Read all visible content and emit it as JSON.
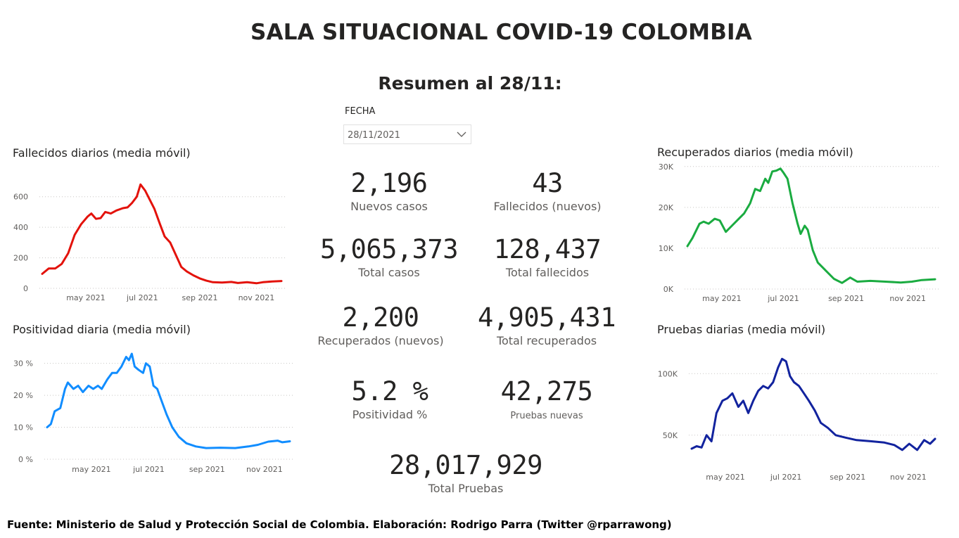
{
  "header": {
    "title": "SALA SITUACIONAL COVID-19 COLOMBIA",
    "subtitle": "Resumen al 28/11:"
  },
  "filter": {
    "label": "FECHA",
    "value": "28/11/2021",
    "icon": "chevron-down-icon"
  },
  "kpis": {
    "nuevos_casos": {
      "value": "2,196",
      "label": "Nuevos casos"
    },
    "fallecidos_nuevos": {
      "value": "43",
      "label": "Fallecidos (nuevos)"
    },
    "total_casos": {
      "value": "5,065,373",
      "label": "Total casos"
    },
    "total_fallecidos": {
      "value": "128,437",
      "label": "Total fallecidos"
    },
    "recuperados_nuevos": {
      "value": "2,200",
      "label": "Recuperados (nuevos)"
    },
    "total_recuperados": {
      "value": "4,905,431",
      "label": "Total recuperados"
    },
    "positividad": {
      "value": "5.2 %",
      "label": "Positividad %"
    },
    "pruebas_nuevas": {
      "value": "42,275",
      "label": "Pruebas nuevas"
    },
    "total_pruebas": {
      "value": "28,017,929",
      "label": "Total Pruebas"
    }
  },
  "footer": {
    "text": "Fuente: Ministerio de Salud y Protección Social de Colombia. Elaboración: Rodrigo Parra (Twitter @rparrawong)"
  },
  "chart_data": [
    {
      "id": "fallecidos",
      "type": "line",
      "title": "Fallecidos diarios (media móvil)",
      "color": "#e3120b",
      "x_range": [
        "2021-03-15",
        "2021-11-28"
      ],
      "ylim": [
        0,
        700
      ],
      "yticks": [
        {
          "value": 0,
          "label": "0"
        },
        {
          "value": 200,
          "label": "200"
        },
        {
          "value": 400,
          "label": "400"
        },
        {
          "value": 600,
          "label": "600"
        }
      ],
      "xticks": [
        {
          "date": "2021-05-01",
          "label": "may 2021"
        },
        {
          "date": "2021-07-01",
          "label": "jul 2021"
        },
        {
          "date": "2021-09-01",
          "label": "sep 2021"
        },
        {
          "date": "2021-11-01",
          "label": "nov 2021"
        }
      ],
      "points": [
        [
          "2021-03-15",
          95
        ],
        [
          "2021-03-22",
          130
        ],
        [
          "2021-03-29",
          130
        ],
        [
          "2021-04-05",
          160
        ],
        [
          "2021-04-12",
          230
        ],
        [
          "2021-04-19",
          350
        ],
        [
          "2021-04-26",
          420
        ],
        [
          "2021-05-03",
          470
        ],
        [
          "2021-05-07",
          490
        ],
        [
          "2021-05-12",
          455
        ],
        [
          "2021-05-17",
          460
        ],
        [
          "2021-05-22",
          500
        ],
        [
          "2021-05-28",
          490
        ],
        [
          "2021-06-03",
          510
        ],
        [
          "2021-06-10",
          525
        ],
        [
          "2021-06-15",
          530
        ],
        [
          "2021-06-20",
          560
        ],
        [
          "2021-06-25",
          600
        ],
        [
          "2021-06-29",
          680
        ],
        [
          "2021-07-04",
          640
        ],
        [
          "2021-07-09",
          580
        ],
        [
          "2021-07-14",
          520
        ],
        [
          "2021-07-20",
          420
        ],
        [
          "2021-07-25",
          340
        ],
        [
          "2021-07-31",
          300
        ],
        [
          "2021-08-06",
          220
        ],
        [
          "2021-08-12",
          140
        ],
        [
          "2021-08-18",
          110
        ],
        [
          "2021-08-25",
          85
        ],
        [
          "2021-09-01",
          65
        ],
        [
          "2021-09-08",
          50
        ],
        [
          "2021-09-15",
          40
        ],
        [
          "2021-09-25",
          38
        ],
        [
          "2021-10-05",
          42
        ],
        [
          "2021-10-12",
          35
        ],
        [
          "2021-10-22",
          40
        ],
        [
          "2021-11-01",
          33
        ],
        [
          "2021-11-08",
          40
        ],
        [
          "2021-11-18",
          45
        ],
        [
          "2021-11-28",
          48
        ]
      ]
    },
    {
      "id": "positividad",
      "type": "line",
      "title": "Positividad diaria (media móvil)",
      "color": "#118dff",
      "x_range": [
        "2021-03-15",
        "2021-11-28"
      ],
      "ylim": [
        0,
        33
      ],
      "yticks": [
        {
          "value": 0,
          "label": "0 %"
        },
        {
          "value": 10,
          "label": "10 %"
        },
        {
          "value": 20,
          "label": "20 %"
        },
        {
          "value": 30,
          "label": "30 %"
        }
      ],
      "xticks": [
        {
          "date": "2021-05-01",
          "label": "may 2021"
        },
        {
          "date": "2021-07-01",
          "label": "jul 2021"
        },
        {
          "date": "2021-09-01",
          "label": "sep 2021"
        },
        {
          "date": "2021-11-01",
          "label": "nov 2021"
        }
      ],
      "points": [
        [
          "2021-03-15",
          10
        ],
        [
          "2021-03-19",
          11
        ],
        [
          "2021-03-23",
          15
        ],
        [
          "2021-03-29",
          16
        ],
        [
          "2021-04-03",
          22
        ],
        [
          "2021-04-06",
          24
        ],
        [
          "2021-04-12",
          22
        ],
        [
          "2021-04-17",
          23
        ],
        [
          "2021-04-22",
          21
        ],
        [
          "2021-04-28",
          23
        ],
        [
          "2021-05-03",
          22
        ],
        [
          "2021-05-08",
          23
        ],
        [
          "2021-05-12",
          22
        ],
        [
          "2021-05-18",
          25
        ],
        [
          "2021-05-23",
          27
        ],
        [
          "2021-05-28",
          27
        ],
        [
          "2021-06-02",
          29
        ],
        [
          "2021-06-07",
          32
        ],
        [
          "2021-06-10",
          31
        ],
        [
          "2021-06-13",
          33
        ],
        [
          "2021-06-16",
          29
        ],
        [
          "2021-06-20",
          28
        ],
        [
          "2021-06-25",
          27
        ],
        [
          "2021-06-28",
          30
        ],
        [
          "2021-07-02",
          29
        ],
        [
          "2021-07-06",
          23
        ],
        [
          "2021-07-10",
          22
        ],
        [
          "2021-07-15",
          18
        ],
        [
          "2021-07-20",
          14
        ],
        [
          "2021-07-26",
          10
        ],
        [
          "2021-08-02",
          7
        ],
        [
          "2021-08-10",
          5
        ],
        [
          "2021-08-20",
          4
        ],
        [
          "2021-08-31",
          3.5
        ],
        [
          "2021-09-15",
          3.6
        ],
        [
          "2021-10-01",
          3.5
        ],
        [
          "2021-10-15",
          4
        ],
        [
          "2021-10-25",
          4.5
        ],
        [
          "2021-11-05",
          5.5
        ],
        [
          "2021-11-15",
          5.8
        ],
        [
          "2021-11-20",
          5.3
        ],
        [
          "2021-11-28",
          5.6
        ]
      ]
    },
    {
      "id": "recuperados",
      "type": "line",
      "title": "Recuperados diarios (media móvil)",
      "color": "#1aab40",
      "x_range": [
        "2021-03-28",
        "2021-11-28"
      ],
      "ylim": [
        0,
        31000
      ],
      "yticks": [
        {
          "value": 0,
          "label": "0K"
        },
        {
          "value": 10000,
          "label": "10K"
        },
        {
          "value": 20000,
          "label": "20K"
        },
        {
          "value": 30000,
          "label": "30K"
        }
      ],
      "xticks": [
        {
          "date": "2021-05-01",
          "label": "may 2021"
        },
        {
          "date": "2021-07-01",
          "label": "jul 2021"
        },
        {
          "date": "2021-09-01",
          "label": "sep 2021"
        },
        {
          "date": "2021-11-01",
          "label": "nov 2021"
        }
      ],
      "points": [
        [
          "2021-03-28",
          10500
        ],
        [
          "2021-04-02",
          12500
        ],
        [
          "2021-04-09",
          16000
        ],
        [
          "2021-04-13",
          16500
        ],
        [
          "2021-04-18",
          16000
        ],
        [
          "2021-04-24",
          17200
        ],
        [
          "2021-04-29",
          16800
        ],
        [
          "2021-05-05",
          14000
        ],
        [
          "2021-05-11",
          15500
        ],
        [
          "2021-05-17",
          17000
        ],
        [
          "2021-05-23",
          18500
        ],
        [
          "2021-05-29",
          21000
        ],
        [
          "2021-06-03",
          24500
        ],
        [
          "2021-06-08",
          24000
        ],
        [
          "2021-06-13",
          27000
        ],
        [
          "2021-06-16",
          26000
        ],
        [
          "2021-06-20",
          28800
        ],
        [
          "2021-06-24",
          29000
        ],
        [
          "2021-06-28",
          29500
        ],
        [
          "2021-07-01",
          28500
        ],
        [
          "2021-07-05",
          27000
        ],
        [
          "2021-07-10",
          21000
        ],
        [
          "2021-07-15",
          16000
        ],
        [
          "2021-07-18",
          13500
        ],
        [
          "2021-07-22",
          15500
        ],
        [
          "2021-07-25",
          14500
        ],
        [
          "2021-07-30",
          9500
        ],
        [
          "2021-08-04",
          6500
        ],
        [
          "2021-08-12",
          4500
        ],
        [
          "2021-08-20",
          2500
        ],
        [
          "2021-08-28",
          1500
        ],
        [
          "2021-09-05",
          2800
        ],
        [
          "2021-09-12",
          1800
        ],
        [
          "2021-09-25",
          2000
        ],
        [
          "2021-10-10",
          1800
        ],
        [
          "2021-10-25",
          1600
        ],
        [
          "2021-11-05",
          1800
        ],
        [
          "2021-11-15",
          2200
        ],
        [
          "2021-11-28",
          2400
        ]
      ]
    },
    {
      "id": "pruebas",
      "type": "line",
      "title": "Pruebas diarias (media móvil)",
      "color": "#12239e",
      "x_range": [
        "2021-03-28",
        "2021-11-28"
      ],
      "ylim": [
        35000,
        115000
      ],
      "yticks": [
        {
          "value": 50000,
          "label": "50K"
        },
        {
          "value": 100000,
          "label": "100K"
        }
      ],
      "xticks": [
        {
          "date": "2021-05-01",
          "label": "may 2021"
        },
        {
          "date": "2021-07-01",
          "label": "jul 2021"
        },
        {
          "date": "2021-09-01",
          "label": "sep 2021"
        },
        {
          "date": "2021-11-01",
          "label": "nov 2021"
        }
      ],
      "points": [
        [
          "2021-03-28",
          39000
        ],
        [
          "2021-04-02",
          41000
        ],
        [
          "2021-04-07",
          40000
        ],
        [
          "2021-04-12",
          50000
        ],
        [
          "2021-04-17",
          45000
        ],
        [
          "2021-04-22",
          68000
        ],
        [
          "2021-04-28",
          78000
        ],
        [
          "2021-05-03",
          80000
        ],
        [
          "2021-05-08",
          84000
        ],
        [
          "2021-05-14",
          73000
        ],
        [
          "2021-05-19",
          78000
        ],
        [
          "2021-05-24",
          68000
        ],
        [
          "2021-05-29",
          78000
        ],
        [
          "2021-06-03",
          86000
        ],
        [
          "2021-06-08",
          90000
        ],
        [
          "2021-06-13",
          88000
        ],
        [
          "2021-06-18",
          93000
        ],
        [
          "2021-06-23",
          105000
        ],
        [
          "2021-06-27",
          112000
        ],
        [
          "2021-07-01",
          110000
        ],
        [
          "2021-07-05",
          98000
        ],
        [
          "2021-07-09",
          93000
        ],
        [
          "2021-07-14",
          90000
        ],
        [
          "2021-07-19",
          84000
        ],
        [
          "2021-07-24",
          78000
        ],
        [
          "2021-07-30",
          70000
        ],
        [
          "2021-08-05",
          60000
        ],
        [
          "2021-08-12",
          56000
        ],
        [
          "2021-08-20",
          50000
        ],
        [
          "2021-08-30",
          48000
        ],
        [
          "2021-09-10",
          46000
        ],
        [
          "2021-09-25",
          45000
        ],
        [
          "2021-10-08",
          44000
        ],
        [
          "2021-10-18",
          42000
        ],
        [
          "2021-10-26",
          38000
        ],
        [
          "2021-11-02",
          43000
        ],
        [
          "2021-11-10",
          38000
        ],
        [
          "2021-11-17",
          46000
        ],
        [
          "2021-11-23",
          43000
        ],
        [
          "2021-11-28",
          47000
        ]
      ]
    }
  ]
}
